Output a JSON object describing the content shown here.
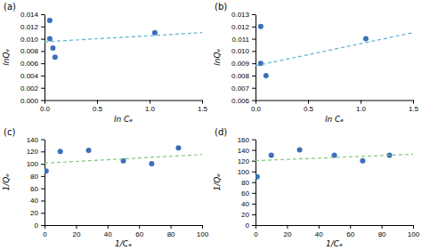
{
  "chart_data": [
    {
      "type": "scatter",
      "title": "(a)",
      "xlabel": "ln Cₑ",
      "ylabel": "lnQₑ",
      "series": [
        {
          "type": "scatter",
          "marker": "circle",
          "color": "#3a6fba",
          "x": [
            0.05,
            0.05,
            0.08,
            0.1,
            1.05
          ],
          "values": [
            0.013,
            0.01,
            0.0085,
            0.007,
            0.011
          ]
        },
        {
          "type": "line",
          "line_style": "dashed",
          "color": "#5ab0d0",
          "x": [
            0.0,
            1.5
          ],
          "values": [
            0.0095,
            0.011
          ]
        }
      ],
      "xlim": [
        0,
        1.5
      ],
      "xticks": [
        {
          "value": 0,
          "label": "0.0"
        },
        {
          "value": 0.5,
          "label": "0.5"
        },
        {
          "value": 1.0,
          "label": "1.0"
        },
        {
          "value": 1.5,
          "label": "1.5"
        }
      ],
      "ylim": [
        0,
        0.014
      ],
      "yticks": [
        {
          "value": 0,
          "label": "0.000"
        },
        {
          "value": 0.002,
          "label": "0.002"
        },
        {
          "value": 0.004,
          "label": "0.004"
        },
        {
          "value": 0.006,
          "label": "0.006"
        },
        {
          "value": 0.008,
          "label": "0.008"
        },
        {
          "value": 0.01,
          "label": "0.010"
        },
        {
          "value": 0.012,
          "label": "0.012"
        },
        {
          "value": 0.014,
          "label": "0.014"
        }
      ]
    },
    {
      "type": "scatter",
      "title": "(b)",
      "xlabel": "ln Cₑ",
      "ylabel": "lnQₑ",
      "series": [
        {
          "type": "scatter",
          "marker": "circle",
          "color": "#3a6fba",
          "x": [
            0.05,
            0.05,
            0.1,
            1.05
          ],
          "values": [
            0.012,
            0.009,
            0.008,
            0.011
          ]
        },
        {
          "type": "line",
          "line_style": "dashed",
          "color": "#5ab0d0",
          "x": [
            0.0,
            1.5
          ],
          "values": [
            0.0088,
            0.0115
          ]
        }
      ],
      "xlim": [
        0,
        1.5
      ],
      "xticks": [
        {
          "value": 0,
          "label": "0.0"
        },
        {
          "value": 0.5,
          "label": "0.5"
        },
        {
          "value": 1.0,
          "label": "1.0"
        },
        {
          "value": 1.5,
          "label": "1.5"
        }
      ],
      "ylim": [
        0.006,
        0.013
      ],
      "yticks": [
        {
          "value": 0.006,
          "label": "0.006"
        },
        {
          "value": 0.007,
          "label": "0.007"
        },
        {
          "value": 0.008,
          "label": "0.008"
        },
        {
          "value": 0.009,
          "label": "0.009"
        },
        {
          "value": 0.01,
          "label": "0.010"
        },
        {
          "value": 0.011,
          "label": "0.011"
        },
        {
          "value": 0.012,
          "label": "0.012"
        },
        {
          "value": 0.013,
          "label": "0.013"
        }
      ]
    },
    {
      "type": "scatter",
      "title": "(c)",
      "xlabel": "1/Cₑ",
      "ylabel": "1/Qₑ",
      "series": [
        {
          "type": "scatter",
          "marker": "circle",
          "color": "#3a6fba",
          "x": [
            1,
            10,
            28,
            50,
            68,
            85
          ],
          "values": [
            88,
            120,
            122,
            105,
            100,
            126
          ]
        },
        {
          "type": "line",
          "line_style": "dashed",
          "color": "#7ec87a",
          "x": [
            0,
            100
          ],
          "values": [
            101,
            115
          ]
        }
      ],
      "xlim": [
        0,
        100
      ],
      "xticks": [
        0,
        20,
        40,
        60,
        80,
        100
      ],
      "ylim": [
        0,
        140
      ],
      "yticks": [
        0,
        20,
        40,
        60,
        80,
        100,
        120,
        140
      ]
    },
    {
      "type": "scatter",
      "title": "(d)",
      "xlabel": "1/Cₑ",
      "ylabel": "1/Qₑ",
      "series": [
        {
          "type": "scatter",
          "marker": "circle",
          "color": "#3a6fba",
          "x": [
            1,
            10,
            28,
            50,
            68,
            85
          ],
          "values": [
            90,
            130,
            140,
            130,
            120,
            130
          ]
        },
        {
          "type": "line",
          "line_style": "dashed",
          "color": "#7ec87a",
          "x": [
            0,
            100
          ],
          "values": [
            120,
            132
          ]
        }
      ],
      "xlim": [
        0,
        100
      ],
      "xticks": [
        0,
        20,
        40,
        60,
        80,
        100
      ],
      "ylim": [
        0,
        160
      ],
      "yticks": [
        0,
        20,
        40,
        60,
        80,
        100,
        120,
        140,
        160
      ]
    }
  ]
}
